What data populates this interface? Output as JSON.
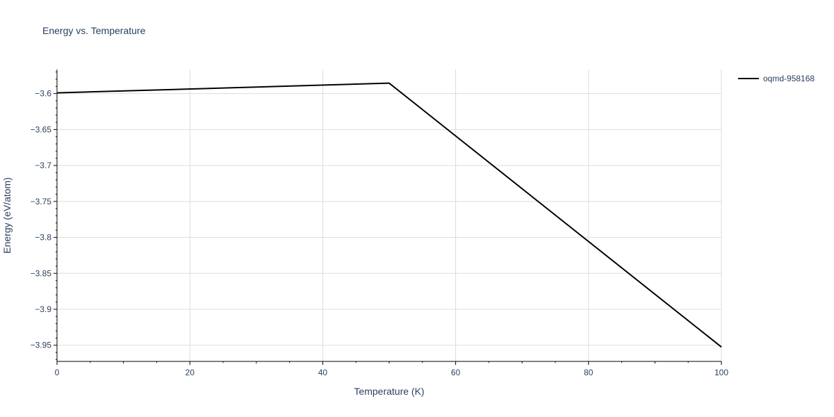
{
  "chart_data": {
    "type": "line",
    "title": "Energy vs. Temperature",
    "xlabel": "Temperature (K)",
    "ylabel": "Energy (eV/atom)",
    "xlim": [
      0,
      100
    ],
    "ylim": [
      -3.9725,
      -3.5665
    ],
    "x_ticks": [
      0,
      20,
      40,
      60,
      80,
      100
    ],
    "y_ticks": [
      -3.6,
      -3.65,
      -3.7,
      -3.75,
      -3.8,
      -3.85,
      -3.9,
      -3.95
    ],
    "y_tick_labels": [
      "−3.6",
      "−3.65",
      "−3.7",
      "−3.75",
      "−3.8",
      "−3.85",
      "−3.9",
      "−3.95"
    ],
    "grid": true,
    "legend_position": "top-right",
    "series": [
      {
        "name": "oqmd-958168",
        "color": "#000000",
        "x": [
          0,
          50,
          100
        ],
        "y": [
          -3.599,
          -3.5855,
          -3.9525
        ]
      }
    ]
  }
}
